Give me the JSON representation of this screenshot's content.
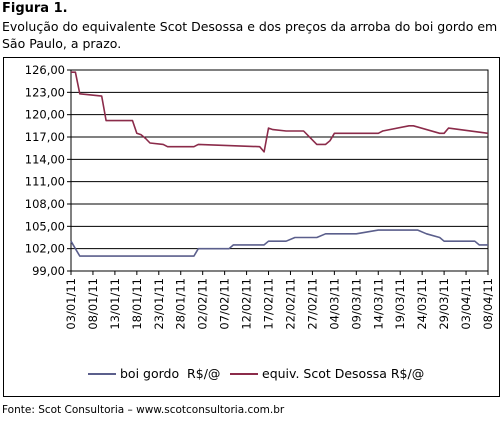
{
  "figure": {
    "label": "Figura 1.",
    "caption": "Evolução do equivalente Scot Desossa e dos preços da arroba do boi gordo em São Paulo, a prazo.",
    "source": "Fonte: Scot Consultoria – www.scotconsultoria.com.br"
  },
  "chart_data": {
    "type": "line",
    "title": "",
    "xlabel": "",
    "ylabel": "",
    "ylim": [
      99,
      126
    ],
    "yticks": [
      "99,00",
      "102,00",
      "105,00",
      "108,00",
      "111,00",
      "114,00",
      "117,00",
      "120,00",
      "123,00",
      "126,00"
    ],
    "xticks": [
      "03/01/11",
      "08/01/11",
      "13/01/11",
      "18/01/11",
      "23/01/11",
      "28/01/11",
      "02/02/11",
      "07/02/11",
      "12/02/11",
      "17/02/11",
      "22/02/11",
      "27/02/11",
      "04/03/11",
      "09/03/11",
      "14/03/11",
      "19/03/11",
      "24/03/11",
      "29/03/11",
      "03/04/11",
      "08/04/11"
    ],
    "grid": "horizontal",
    "legend_position": "bottom",
    "series": [
      {
        "name": "boi gordo  R$/@",
        "color": "#5b5f8c",
        "x": [
          "03/01/11",
          "04/01/11",
          "05/01/11",
          "10/01/11",
          "24/01/11",
          "31/01/11",
          "01/02/11",
          "03/02/11",
          "08/02/11",
          "09/02/11",
          "14/02/11",
          "16/02/11",
          "17/02/11",
          "21/02/11",
          "23/02/11",
          "28/02/11",
          "02/03/11",
          "09/03/11",
          "11/03/11",
          "14/03/11",
          "23/03/11",
          "25/03/11",
          "28/03/11",
          "29/03/11",
          "05/04/11",
          "06/04/11",
          "08/04/11"
        ],
        "values": [
          103.0,
          102.0,
          101.0,
          101.0,
          101.0,
          101.0,
          102.0,
          102.0,
          102.0,
          102.5,
          102.5,
          102.5,
          103.0,
          103.0,
          103.5,
          103.5,
          104.0,
          104.0,
          104.2,
          104.5,
          104.5,
          104.0,
          103.5,
          103.0,
          103.0,
          102.5,
          102.5
        ]
      },
      {
        "name": "equiv. Scot Desossa R$/@",
        "color": "#8b2b4a",
        "x": [
          "03/01/11",
          "04/01/11",
          "05/01/11",
          "10/01/11",
          "11/01/11",
          "17/01/11",
          "18/01/11",
          "19/01/11",
          "20/01/11",
          "21/01/11",
          "24/01/11",
          "25/01/11",
          "31/01/11",
          "01/02/11",
          "15/02/11",
          "16/02/11",
          "17/02/11",
          "18/02/11",
          "21/02/11",
          "25/02/11",
          "28/02/11",
          "01/03/11",
          "02/03/11",
          "03/03/11",
          "04/03/11",
          "07/03/11",
          "14/03/11",
          "15/03/11",
          "21/03/11",
          "22/03/11",
          "28/03/11",
          "29/03/11",
          "30/03/11",
          "08/04/11"
        ],
        "values": [
          125.7,
          125.7,
          122.8,
          122.5,
          119.2,
          119.2,
          117.5,
          117.3,
          116.8,
          116.2,
          116.0,
          115.7,
          115.7,
          116.0,
          115.7,
          115.0,
          118.2,
          118.0,
          117.8,
          117.8,
          116.0,
          116.0,
          116.0,
          116.5,
          117.5,
          117.5,
          117.5,
          117.8,
          118.5,
          118.5,
          117.5,
          117.5,
          118.2,
          117.5
        ]
      }
    ]
  }
}
